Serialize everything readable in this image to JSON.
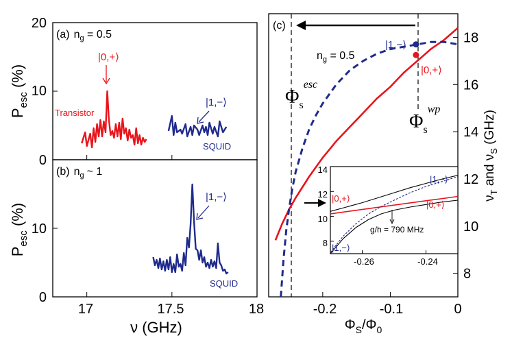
{
  "colors": {
    "red": "#e8141c",
    "blue": "#1f2a8c",
    "black": "#000000"
  },
  "chart_data": [
    {
      "type": "line",
      "panel_label": "(a)",
      "ng_text": "n",
      "ng_sub": "g",
      "ng_value": " = 0.5",
      "xlabel": "",
      "ylabel": {
        "main": "P",
        "sub": "esc",
        "unit": " (%)"
      },
      "xlim": [
        16.8,
        18.0
      ],
      "ylim": [
        0,
        20
      ],
      "yticks": [
        0,
        10,
        20
      ],
      "xticks": [
        17,
        17.5,
        18
      ],
      "annotations": {
        "red_state": "|0,+⟩",
        "blue_state": "|1,−⟩",
        "red_name": "Transistor",
        "blue_name": "SQUID"
      },
      "series": [
        {
          "name": "Transistor",
          "color": "red",
          "x": [
            16.97,
            16.99,
            17.0,
            17.02,
            17.03,
            17.04,
            17.05,
            17.06,
            17.07,
            17.08,
            17.09,
            17.1,
            17.11,
            17.12,
            17.13,
            17.14,
            17.15,
            17.16,
            17.17,
            17.18,
            17.19,
            17.2,
            17.21,
            17.22,
            17.23,
            17.24,
            17.25,
            17.26,
            17.27,
            17.28,
            17.29,
            17.3,
            17.31,
            17.32,
            17.33,
            17.34,
            17.35
          ],
          "y": [
            2.4,
            4.0,
            2.0,
            3.8,
            1.8,
            4.6,
            2.6,
            5.2,
            3.4,
            5.8,
            3.4,
            5.6,
            4.0,
            10.0,
            5.8,
            3.6,
            4.2,
            3.2,
            5.2,
            3.4,
            5.4,
            3.0,
            6.0,
            3.8,
            4.6,
            2.8,
            4.4,
            3.2,
            3.6,
            2.2,
            4.6,
            2.4,
            3.6,
            2.2,
            3.2,
            2.6,
            3.0
          ]
        },
        {
          "name": "SQUID",
          "color": "blue",
          "x": [
            17.48,
            17.5,
            17.51,
            17.52,
            17.53,
            17.55,
            17.56,
            17.58,
            17.59,
            17.61,
            17.62,
            17.63,
            17.65,
            17.66,
            17.68,
            17.69,
            17.7,
            17.71,
            17.72,
            17.74,
            17.75,
            17.77,
            17.78,
            17.8,
            17.82
          ],
          "y": [
            4.2,
            6.4,
            3.6,
            5.4,
            4.0,
            4.4,
            3.8,
            5.2,
            3.4,
            4.8,
            3.6,
            5.0,
            4.4,
            3.6,
            5.0,
            4.0,
            4.8,
            3.6,
            5.4,
            3.8,
            4.8,
            3.4,
            5.6,
            4.0,
            4.8
          ]
        }
      ]
    },
    {
      "type": "line",
      "panel_label": "(b)",
      "ng_text": "n",
      "ng_sub": "g",
      "ng_value": "~ 1",
      "xlabel": {
        "main": "ν (GHz)"
      },
      "ylabel": {
        "main": "P",
        "sub": "esc",
        "unit": " (%)"
      },
      "xlim": [
        16.8,
        18.0
      ],
      "ylim": [
        0,
        20
      ],
      "yticks": [
        0,
        10
      ],
      "xticks": [
        17,
        17.5,
        18
      ],
      "xtick_labels": [
        "17",
        "17.5",
        "18"
      ],
      "annotations": {
        "blue_state": "|1,−⟩",
        "blue_name": "SQUID"
      },
      "series": [
        {
          "name": "SQUID",
          "color": "blue",
          "x": [
            17.39,
            17.4,
            17.41,
            17.42,
            17.43,
            17.44,
            17.45,
            17.46,
            17.47,
            17.48,
            17.49,
            17.5,
            17.51,
            17.52,
            17.53,
            17.54,
            17.55,
            17.56,
            17.57,
            17.58,
            17.59,
            17.6,
            17.61,
            17.62,
            17.63,
            17.64,
            17.65,
            17.66,
            17.67,
            17.68,
            17.69,
            17.7,
            17.71,
            17.72,
            17.73,
            17.74,
            17.75,
            17.76,
            17.77,
            17.78,
            17.79,
            17.8,
            17.81,
            17.82,
            17.83
          ],
          "y": [
            5.8,
            4.6,
            5.4,
            4.2,
            5.6,
            4.0,
            5.2,
            3.8,
            5.4,
            4.0,
            5.8,
            3.6,
            4.8,
            3.6,
            6.2,
            4.4,
            4.8,
            3.8,
            6.4,
            4.6,
            8.6,
            7.2,
            10.6,
            16.4,
            11.0,
            7.0,
            6.8,
            5.4,
            6.8,
            5.0,
            5.8,
            4.4,
            5.0,
            4.2,
            5.4,
            4.4,
            5.2,
            4.2,
            7.8,
            5.0,
            4.6,
            3.8,
            4.0,
            3.4,
            3.6
          ]
        }
      ]
    },
    {
      "type": "line",
      "panel_label": "(c)",
      "ng_text": "n",
      "ng_sub": "g",
      "ng_value": " = 0.5",
      "xlabel": {
        "main": "Φ",
        "sub1": "S",
        "mid": "/Φ",
        "sub2": "0"
      },
      "ylabel": {
        "pre": "ν",
        "sub1": "T",
        "mid": " and ν",
        "sub2": "S",
        "unit": " (GHz)"
      },
      "xlim": [
        -0.28,
        0.0
      ],
      "ylim": [
        7,
        19
      ],
      "xticks": [
        -0.2,
        -0.1,
        0
      ],
      "xtick_labels": [
        "-0.2",
        "-0.1",
        "0"
      ],
      "yticks": [
        8,
        10,
        12,
        14,
        16,
        18
      ],
      "annotations": {
        "phi_esc": "Φ",
        "phi_esc_sub": "s",
        "phi_esc_sup": "esc",
        "phi_wp": "Φ",
        "phi_wp_sub": "s",
        "phi_wp_sup": "wp",
        "blue_state": "|1,−⟩",
        "red_state": "|0,+⟩",
        "phi_esc_x": -0.255,
        "phi_wp_x": -0.062
      },
      "series": [
        {
          "name": "ν_T (transistor)",
          "color": "red",
          "style": "solid",
          "x": [
            -0.27,
            -0.26,
            -0.25,
            -0.24,
            -0.22,
            -0.2,
            -0.18,
            -0.16,
            -0.14,
            -0.12,
            -0.1,
            -0.08,
            -0.06,
            -0.04,
            -0.02,
            0.0
          ],
          "y": [
            9.4,
            10.1,
            10.7,
            11.2,
            12.1,
            12.9,
            13.6,
            14.2,
            14.8,
            15.4,
            15.9,
            16.5,
            17.0,
            17.5,
            17.9,
            18.4
          ]
        },
        {
          "name": "ν_S (SQUID)",
          "color": "blue",
          "style": "dashed",
          "x": [
            -0.262,
            -0.258,
            -0.254,
            -0.25,
            -0.245,
            -0.24,
            -0.23,
            -0.22,
            -0.21,
            -0.2,
            -0.18,
            -0.16,
            -0.14,
            -0.12,
            -0.1,
            -0.08,
            -0.06,
            -0.04,
            -0.02,
            0.0
          ],
          "y": [
            7.0,
            8.6,
            9.8,
            10.7,
            11.6,
            12.3,
            13.3,
            14.1,
            14.7,
            15.2,
            16.0,
            16.6,
            17.0,
            17.3,
            17.5,
            17.6,
            17.7,
            17.8,
            17.8,
            17.7
          ]
        }
      ],
      "markers": [
        {
          "color": "blue",
          "x": -0.062,
          "y": 17.7
        },
        {
          "color": "red",
          "x": -0.062,
          "y": 17.25
        }
      ],
      "inset": {
        "xlim": [
          -0.27,
          -0.23
        ],
        "ylim": [
          7,
          14
        ],
        "xticks": [
          -0.26,
          -0.24
        ],
        "xtick_labels": [
          "-0.26",
          "-0.24"
        ],
        "yticks": [
          8,
          10,
          12,
          14
        ],
        "labels": {
          "blue_top": "|1,−⟩",
          "red_left": "|0,+⟩",
          "red_right": "|0,+⟩",
          "blue_bottom": "|1,−⟩",
          "coupling": "g/h = 790 MHz"
        },
        "series": [
          {
            "name": "red",
            "color": "red",
            "x": [
              -0.27,
              -0.23
            ],
            "y": [
              10.2,
              11.6
            ]
          },
          {
            "name": "black upper",
            "color": "black",
            "x": [
              -0.27,
              -0.265,
              -0.26,
              -0.255,
              -0.25,
              -0.245,
              -0.24,
              -0.235,
              -0.23
            ],
            "y": [
              10.4,
              10.75,
              11.1,
              11.5,
              11.9,
              12.3,
              12.65,
              13.0,
              13.3
            ]
          },
          {
            "name": "blue dashed",
            "color": "blue",
            "x": [
              -0.27,
              -0.266,
              -0.262,
              -0.258,
              -0.254,
              -0.25,
              -0.245,
              -0.24,
              -0.235,
              -0.23
            ],
            "y": [
              7.1,
              8.4,
              9.4,
              10.2,
              10.8,
              11.3,
              11.9,
              12.4,
              12.8,
              13.2
            ]
          },
          {
            "name": "black lower",
            "color": "black",
            "x": [
              -0.27,
              -0.266,
              -0.262,
              -0.258,
              -0.254,
              -0.25,
              -0.245,
              -0.24,
              -0.235,
              -0.23
            ],
            "y": [
              7.0,
              8.2,
              9.1,
              9.75,
              10.2,
              10.5,
              10.75,
              10.95,
              11.15,
              11.3
            ]
          }
        ]
      }
    }
  ]
}
